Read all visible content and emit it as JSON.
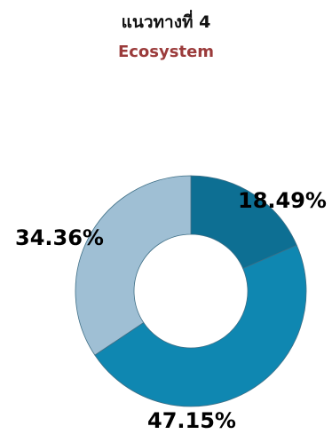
{
  "header": {
    "title": "แนวทางที่ 4",
    "subtitle": "Ecosystem"
  },
  "colors": {
    "subtitle": "#9b3b3b",
    "slice_dark": "#0d6f93",
    "slice_mid": "#0f87b1",
    "slice_light": "#9fbfd4"
  },
  "chart_data": {
    "type": "pie",
    "donut": true,
    "title": "แนวทางที่ 4",
    "subtitle": "Ecosystem",
    "slices": [
      {
        "value": 18.49,
        "label": "18.49%",
        "color": "#0d6f93"
      },
      {
        "value": 47.15,
        "label": "47.15%",
        "color": "#0f87b1"
      },
      {
        "value": 34.36,
        "label": "34.36%",
        "color": "#9fbfd4"
      }
    ],
    "start_angle": "top",
    "direction": "clockwise"
  }
}
